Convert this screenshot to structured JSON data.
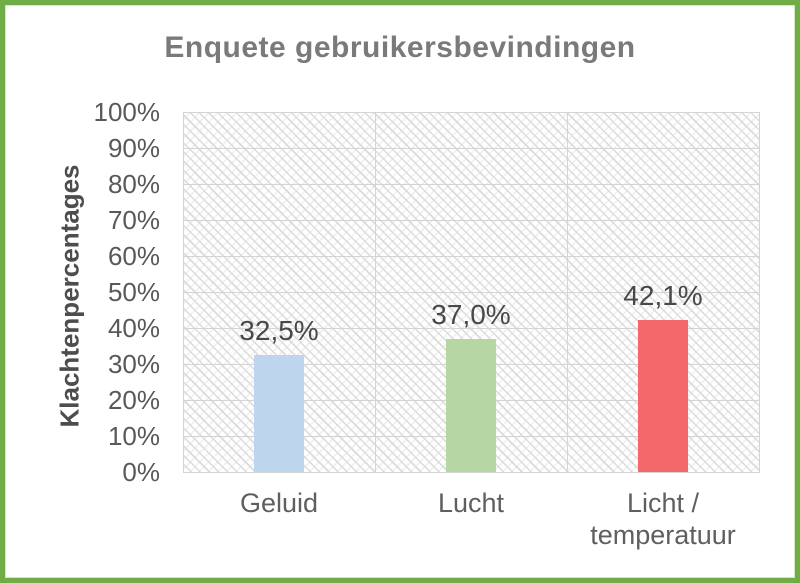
{
  "chart_data": {
    "type": "bar",
    "title": "Enquete gebruikersbevindingen",
    "ylabel": "Klachtenpercentages",
    "xlabel": "",
    "categories": [
      "Geluid",
      "Lucht",
      "Licht / temperatuur"
    ],
    "values": [
      32.5,
      37.0,
      42.1
    ],
    "value_labels": [
      "32,5%",
      "37,0%",
      "42,1%"
    ],
    "series_colors": [
      "#BDD6EE",
      "#B6D7A4",
      "#F4676B"
    ],
    "ylim": [
      0,
      100
    ],
    "ytick_step": 10,
    "ytick_labels": [
      "0%",
      "10%",
      "20%",
      "30%",
      "40%",
      "50%",
      "60%",
      "70%",
      "80%",
      "90%",
      "100%"
    ],
    "grid": true,
    "legend": "none",
    "plot_area_pattern": "light-diagonal-hatch"
  },
  "colors": {
    "frame_border": "#70AD47",
    "title_text": "#7A7A7A",
    "axis_tick_text": "#595959",
    "category_text": "#5F5F5F",
    "data_label_text": "#484848",
    "axis_title_text": "#4D4D4D",
    "gridline": "#D4D4D4",
    "hatch_line": "#DBDBDB",
    "background": "#FFFFFF"
  }
}
